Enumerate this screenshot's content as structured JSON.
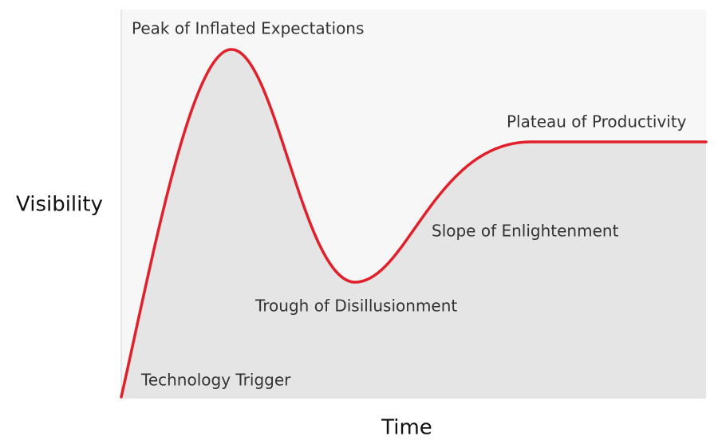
{
  "axes": {
    "y_label": "Visibility",
    "x_label": "Time"
  },
  "phases": [
    {
      "label": "Technology Trigger"
    },
    {
      "label": "Peak of Inflated Expectations"
    },
    {
      "label": "Trough of Disillusionment"
    },
    {
      "label": "Slope of Enlightenment"
    },
    {
      "label": "Plateau of Productivity"
    }
  ]
}
